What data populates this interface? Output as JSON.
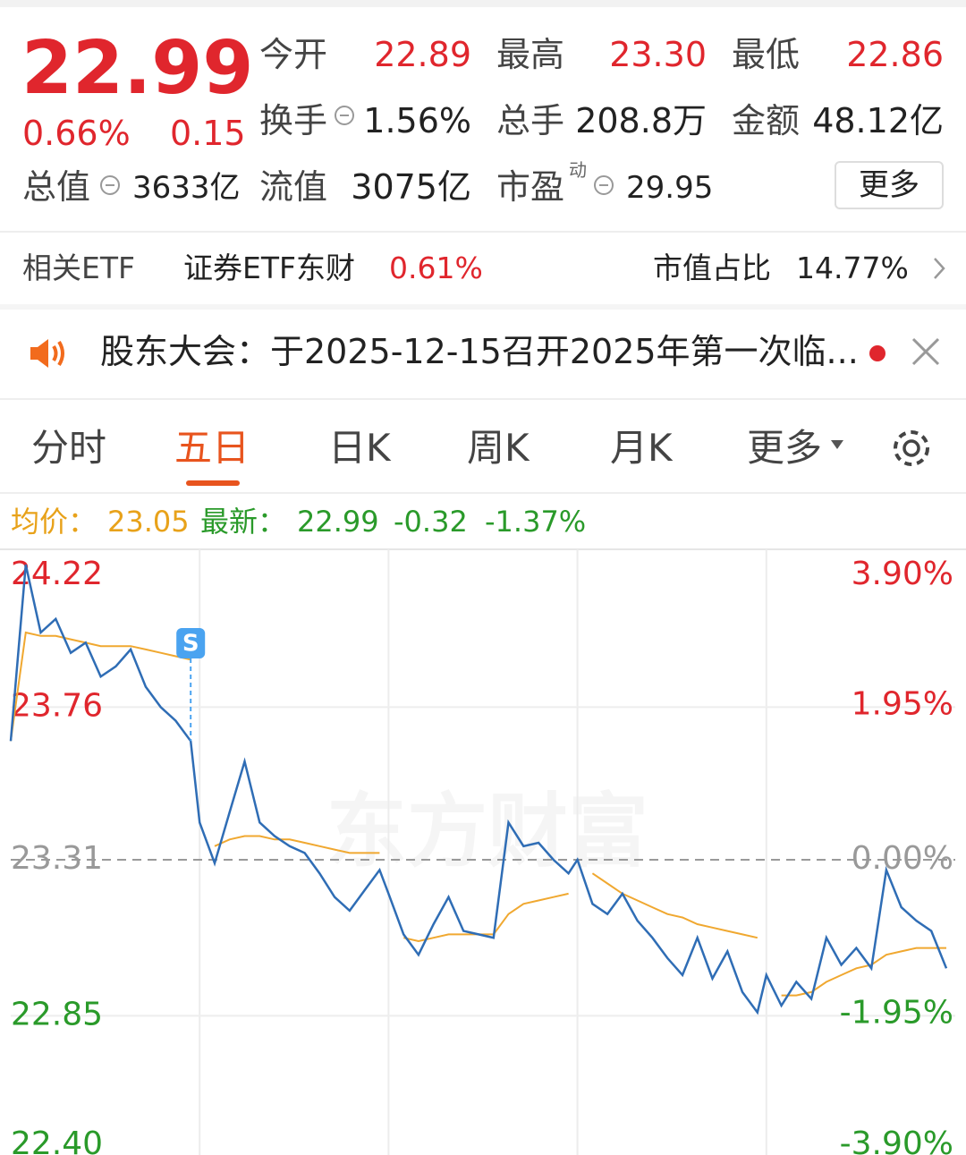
{
  "quote": {
    "price": "22.99",
    "change_pct": "0.66%",
    "change": "0.15",
    "fields": [
      {
        "label": "今开",
        "value": "22.89"
      },
      {
        "label": "最高",
        "value": "23.30"
      },
      {
        "label": "最低",
        "value": "22.86"
      },
      {
        "label": "换手",
        "value": "1.56%"
      },
      {
        "label": "总手",
        "value": "208.8万"
      },
      {
        "label": "金额",
        "value": "48.12亿"
      },
      {
        "label": "总值",
        "value": "3633亿"
      },
      {
        "label": "流值",
        "value": "3075亿"
      },
      {
        "label": "市盈",
        "sup": "动",
        "value": "29.95"
      }
    ],
    "more": "更多"
  },
  "etf": {
    "label": "相关ETF",
    "name": "证券ETF东财",
    "change": "0.61%",
    "ratio_label": "市值占比",
    "ratio": "14.77%"
  },
  "notice": "股东大会：于2025-12-15召开2025年第一次临...",
  "tabs": [
    "分时",
    "五日",
    "日K",
    "周K",
    "月K",
    "更多"
  ],
  "legend": {
    "avg_label": "均价：",
    "avg": "23.05",
    "latest_label": "最新：",
    "latest": "22.99",
    "change": "-0.32",
    "change_pct": "-1.37%"
  },
  "chart_data": {
    "type": "line",
    "watermark": "东方财富",
    "marker": "S",
    "ylim": [
      22.4,
      24.22
    ],
    "yticks": [
      24.22,
      23.76,
      23.31,
      22.85,
      {
        "value": 22.4,
        "label": "22.40"
      }
    ],
    "y2lim": [
      -3.9,
      3.9
    ],
    "y2ticks": [
      {
        "value": 3.9,
        "label": "3.90%"
      },
      {
        "value": 1.95,
        "label": "1.95%"
      },
      {
        "value": 0,
        "label": "0.00%"
      },
      {
        "value": -1.95,
        "label": "-1.95%"
      },
      {
        "value": -3.9,
        "label": "-3.90%"
      }
    ],
    "series": [
      {
        "color": "#2f6db5",
        "values": [
          23.66,
          24.18,
          23.98,
          24.02,
          23.92,
          23.95,
          23.85,
          23.88,
          23.93,
          23.82,
          23.76,
          23.72,
          23.66,
          23.42,
          23.3,
          23.45,
          23.6,
          23.42,
          23.38,
          23.35,
          23.33,
          23.27,
          23.2,
          23.16,
          23.22,
          23.28,
          23.21,
          23.09,
          23.03,
          23.12,
          23.2,
          23.1,
          23.09,
          23.08,
          23.42,
          23.35,
          23.36,
          23.31,
          23.27,
          23.31,
          23.18,
          23.15,
          23.21,
          23.13,
          23.08,
          23.02,
          22.97,
          23.08,
          22.96,
          23.04,
          22.92,
          22.86,
          22.97,
          22.88,
          22.95,
          22.9,
          23.08,
          23.0,
          23.05,
          22.99,
          23.28,
          23.17,
          23.13,
          23.1,
          22.99
        ]
      },
      {
        "color": "#f0a830",
        "values": [
          23.66,
          23.98,
          23.97,
          23.97,
          23.96,
          23.95,
          23.94,
          23.94,
          23.94,
          23.93,
          23.92,
          23.91,
          23.9,
          null,
          23.35,
          23.37,
          23.38,
          23.38,
          23.37,
          23.37,
          23.36,
          23.35,
          23.34,
          23.33,
          23.33,
          23.33,
          null,
          23.08,
          23.07,
          23.08,
          23.09,
          23.09,
          23.09,
          23.09,
          23.15,
          23.18,
          23.19,
          23.2,
          23.21,
          null,
          23.27,
          23.24,
          23.21,
          23.19,
          23.17,
          23.15,
          23.14,
          23.12,
          23.11,
          23.1,
          23.09,
          23.08,
          null,
          22.91,
          22.91,
          22.92,
          22.95,
          22.97,
          22.99,
          23.0,
          23.03,
          23.04,
          23.05,
          23.05,
          23.05
        ]
      }
    ]
  }
}
